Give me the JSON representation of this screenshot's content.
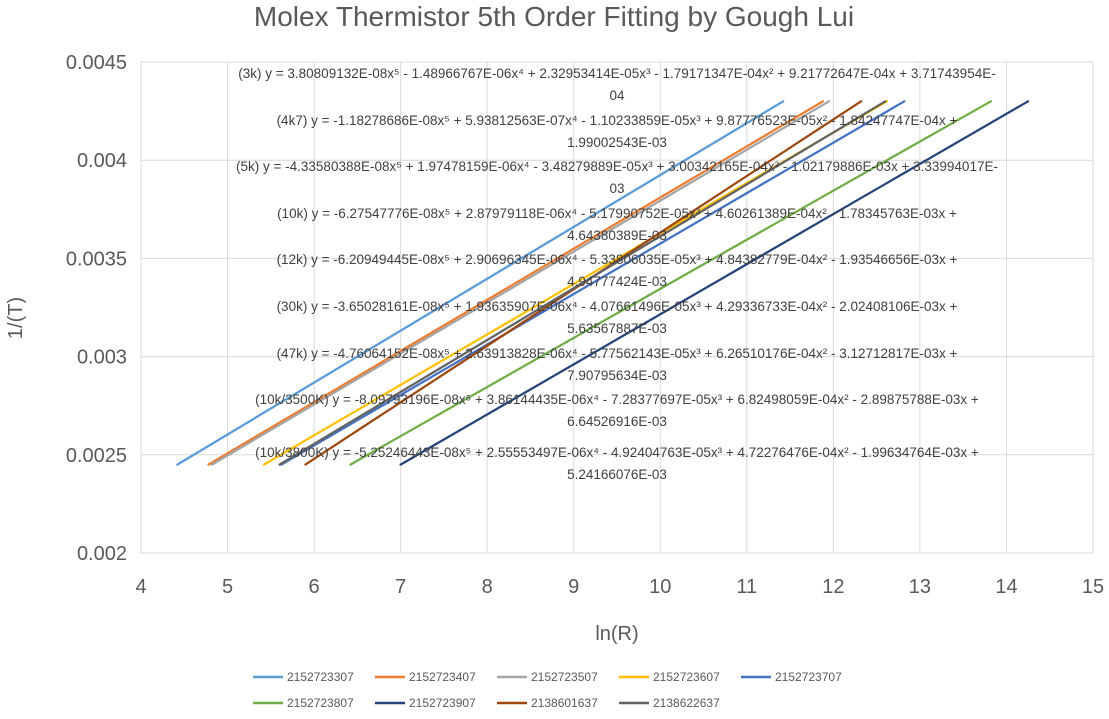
{
  "chart_data": {
    "type": "line",
    "title": "Molex Thermistor 5th Order Fitting by Gough Lui",
    "xlabel": "ln(R)",
    "ylabel": "1/(T)",
    "xlim": [
      4,
      15
    ],
    "ylim": [
      0.002,
      0.0045
    ],
    "x_ticks": [
      "4",
      "5",
      "6",
      "7",
      "8",
      "9",
      "10",
      "11",
      "12",
      "13",
      "14",
      "15"
    ],
    "y_ticks": [
      "0.002",
      "0.0025",
      "0.003",
      "0.0035",
      "0.004",
      "0.0045"
    ],
    "grid": "horizontal and vertical",
    "legend_position": "bottom",
    "series": [
      {
        "name": "2152723307",
        "color": "#5B9BD5",
        "x": [
          4.42,
          11.42
        ],
        "y": [
          0.00245,
          0.0043
        ]
      },
      {
        "name": "2152723407",
        "color": "#ED7D31",
        "x": [
          4.78,
          11.88
        ],
        "y": [
          0.00245,
          0.0043
        ]
      },
      {
        "name": "2152723507",
        "color": "#A5A5A5",
        "x": [
          4.82,
          11.95
        ],
        "y": [
          0.00245,
          0.0043
        ]
      },
      {
        "name": "2152723607",
        "color": "#FFC000",
        "x": [
          5.42,
          12.62
        ],
        "y": [
          0.00245,
          0.0043
        ]
      },
      {
        "name": "2152723707",
        "color": "#4472C4",
        "x": [
          5.62,
          12.82
        ],
        "y": [
          0.00245,
          0.0043
        ]
      },
      {
        "name": "2152723807",
        "color": "#70AD47",
        "x": [
          6.42,
          13.82
        ],
        "y": [
          0.00245,
          0.0043
        ]
      },
      {
        "name": "2152723907",
        "color": "#264478",
        "x": [
          7.0,
          14.25
        ],
        "y": [
          0.00245,
          0.0043
        ]
      },
      {
        "name": "2138601637",
        "color": "#9E480E",
        "x": [
          5.9,
          12.32
        ],
        "y": [
          0.00245,
          0.0043
        ]
      },
      {
        "name": "2138622637",
        "color": "#636363",
        "x": [
          5.6,
          12.6
        ],
        "y": [
          0.00245,
          0.0043
        ]
      }
    ],
    "annotations": [
      {
        "line1": "(3k) y = 3.80809132E-08x⁵ - 1.48966767E-06x⁴ + 2.32953414E-05x³ - 1.79171347E-04x² + 9.21772647E-04x + 3.71743954E-",
        "line2": "04"
      },
      {
        "line1": "(4k7) y = -1.18278686E-08x⁵ + 5.93812563E-07x⁴ - 1.10233859E-05x³ + 9.87776523E-05x² - 1.84247747E-04x +",
        "line2": "1.99002543E-03"
      },
      {
        "line1": "(5k) y = -4.33580388E-08x⁵ + 1.97478159E-06x⁴ - 3.48279889E-05x³ + 3.00342165E-04x² - 1.02179886E-03x + 3.33994017E-",
        "line2": "03"
      },
      {
        "line1": "(10k) y = -6.27547776E-08x⁵ + 2.87979118E-06x⁴ - 5.17990752E-05x³ + 4.60261389E-04x² - 1.78345763E-03x +",
        "line2": "4.64380389E-03"
      },
      {
        "line1": "(12k) y = -6.20949445E-08x⁵ + 2.90696345E-06x⁴ - 5.33806035E-05x³ + 4.84382779E-04x² - 1.93546656E-03x +",
        "line2": "4.94777424E-03"
      },
      {
        "line1": "(30k) y = -3.65028161E-08x⁵ + 1.93635907E-06x⁴ - 4.07661496E-05x³ + 4.29336733E-04x² - 2.02408106E-03x +",
        "line2": "5.63567887E-03"
      },
      {
        "line1": "(47k) y = -4.76064152E-08x⁵ + 2.63913828E-06x⁴ - 5.77562143E-05x³ + 6.26510176E-04x² - 3.12712817E-03x +",
        "line2": "7.90795634E-03"
      },
      {
        "line1": "(10k/3500K) y = -8.09793196E-08x⁵ + 3.86144435E-06x⁴ - 7.28377697E-05x³ + 6.82498059E-04x² - 2.89875788E-03x +",
        "line2": "6.64526916E-03"
      },
      {
        "line1": "(10k/3800K) y = -5.25246443E-08x⁵ + 2.55553497E-06x⁴ - 4.92404763E-05x³ + 4.72276476E-04x² - 1.99634764E-03x +",
        "line2": "5.24166076E-03"
      }
    ]
  }
}
